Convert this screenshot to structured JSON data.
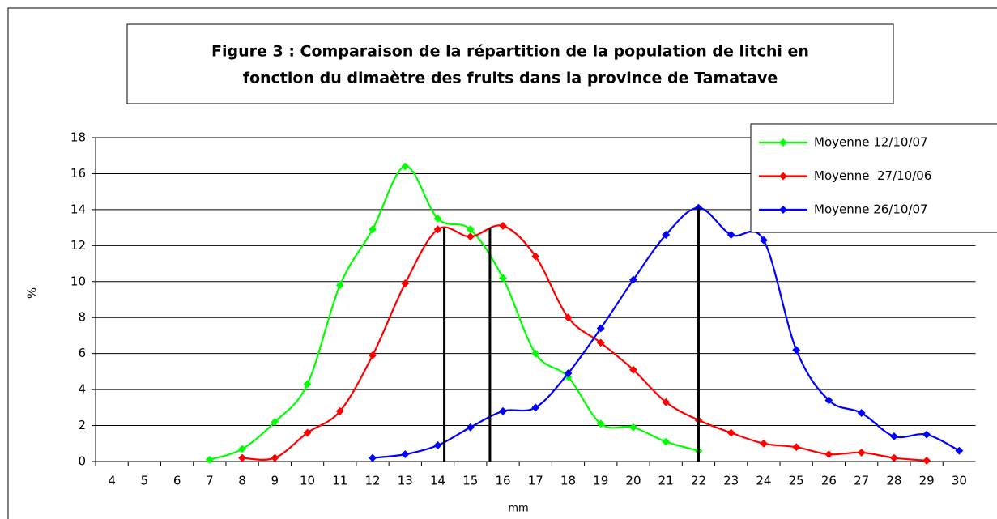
{
  "chart_data": {
    "type": "line",
    "title": [
      "Figure 3 : Comparaison de la répartition de la population de litchi en",
      "fonction du dimaètre des fruits dans la province de Tamatave"
    ],
    "x_label": "mm",
    "y_label": "%",
    "xlim": [
      3.5,
      30.5
    ],
    "xticks": [
      4,
      5,
      6,
      7,
      8,
      9,
      10,
      11,
      12,
      13,
      14,
      15,
      16,
      17,
      18,
      19,
      20,
      21,
      22,
      23,
      24,
      25,
      26,
      27,
      28,
      29,
      30
    ],
    "ylim": [
      0,
      18
    ],
    "yticks": [
      0,
      2,
      4,
      6,
      8,
      10,
      12,
      14,
      16,
      18
    ],
    "grid": true,
    "legend": "top-right",
    "series": [
      {
        "name": "Moyenne 12/10/07",
        "color": "#00ff00",
        "x": [
          7,
          8,
          9,
          10,
          11,
          12,
          13,
          14,
          15,
          16,
          17,
          18,
          19,
          20,
          21,
          22
        ],
        "values": [
          0.1,
          0.7,
          2.2,
          4.3,
          9.8,
          12.9,
          16.4,
          13.5,
          12.9,
          10.2,
          6.0,
          4.7,
          2.1,
          1.9,
          1.1,
          0.6
        ]
      },
      {
        "name": "Moyenne  27/10/06",
        "color": "#ff0000",
        "x": [
          8,
          9,
          10,
          11,
          12,
          13,
          14,
          15,
          16,
          17,
          18,
          19,
          20,
          21,
          22,
          23,
          24,
          25,
          26,
          27,
          28,
          29
        ],
        "values": [
          0.2,
          0.2,
          1.6,
          2.8,
          5.9,
          9.9,
          12.9,
          12.5,
          13.1,
          11.4,
          8.0,
          6.6,
          5.1,
          3.3,
          2.3,
          1.6,
          1.0,
          0.8,
          0.4,
          0.5,
          0.2,
          0.05
        ]
      },
      {
        "name": "Moyenne 26/10/07",
        "color": "#0000ff",
        "x": [
          12,
          13,
          14,
          15,
          16,
          17,
          18,
          19,
          20,
          21,
          22,
          23,
          24,
          25,
          26,
          27,
          28,
          29,
          30
        ],
        "values": [
          0.2,
          0.4,
          0.9,
          1.9,
          2.8,
          3.0,
          4.9,
          7.4,
          10.1,
          12.6,
          14.1,
          12.6,
          12.3,
          6.2,
          3.4,
          2.7,
          1.4,
          1.5,
          0.6
        ]
      }
    ],
    "reference_lines": [
      {
        "x": 14.2,
        "y": 13
      },
      {
        "x": 15.6,
        "y": 13
      },
      {
        "x": 22,
        "y": 14.1
      }
    ]
  }
}
